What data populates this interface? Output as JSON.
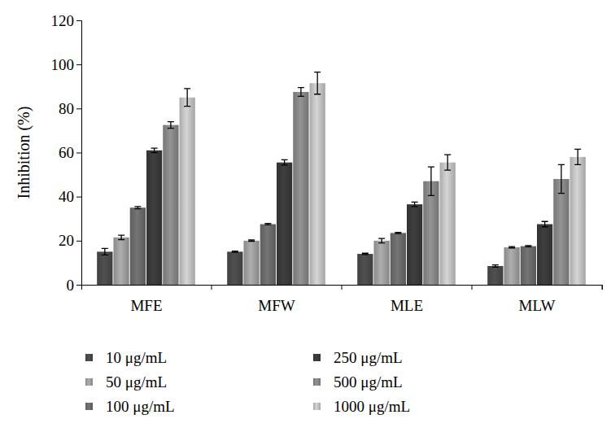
{
  "chart_data": {
    "type": "bar",
    "y_label": "Inhibition (%)",
    "categories": [
      "MFE",
      "MFW",
      "MLE",
      "MLW"
    ],
    "ylim": [
      0,
      120
    ],
    "yticks": [
      0,
      20,
      40,
      60,
      80,
      100,
      120
    ],
    "grid": false,
    "legend": "bottom",
    "series": [
      {
        "name": "10 μg/mL",
        "color": "#474747",
        "values": [
          15,
          15,
          14,
          8.5
        ],
        "errors": [
          1.5,
          0.3,
          0.3,
          0.5
        ]
      },
      {
        "name": "50 μg/mL",
        "color": "#9a9a9a",
        "values": [
          21.5,
          20,
          20,
          17
        ],
        "errors": [
          1,
          0.3,
          1,
          0.3
        ]
      },
      {
        "name": "100 μg/mL",
        "color": "#676767",
        "values": [
          35,
          27.5,
          23.5,
          17.5
        ],
        "errors": [
          0.5,
          0.3,
          0.3,
          0.3
        ]
      },
      {
        "name": "250 μg/mL",
        "color": "#383838",
        "values": [
          61,
          55.5,
          36.5,
          27.5
        ],
        "errors": [
          1,
          1.2,
          1,
          1.2
        ]
      },
      {
        "name": "500 μg/mL",
        "color": "#838383",
        "values": [
          72.5,
          87.5,
          47,
          48
        ],
        "errors": [
          1.5,
          2,
          6.5,
          6.5
        ]
      },
      {
        "name": "1000 μg/mL",
        "color": "#bdbdbd",
        "values": [
          85,
          91.5,
          55.5,
          58
        ],
        "errors": [
          4,
          5,
          3.5,
          3.5
        ]
      }
    ]
  }
}
